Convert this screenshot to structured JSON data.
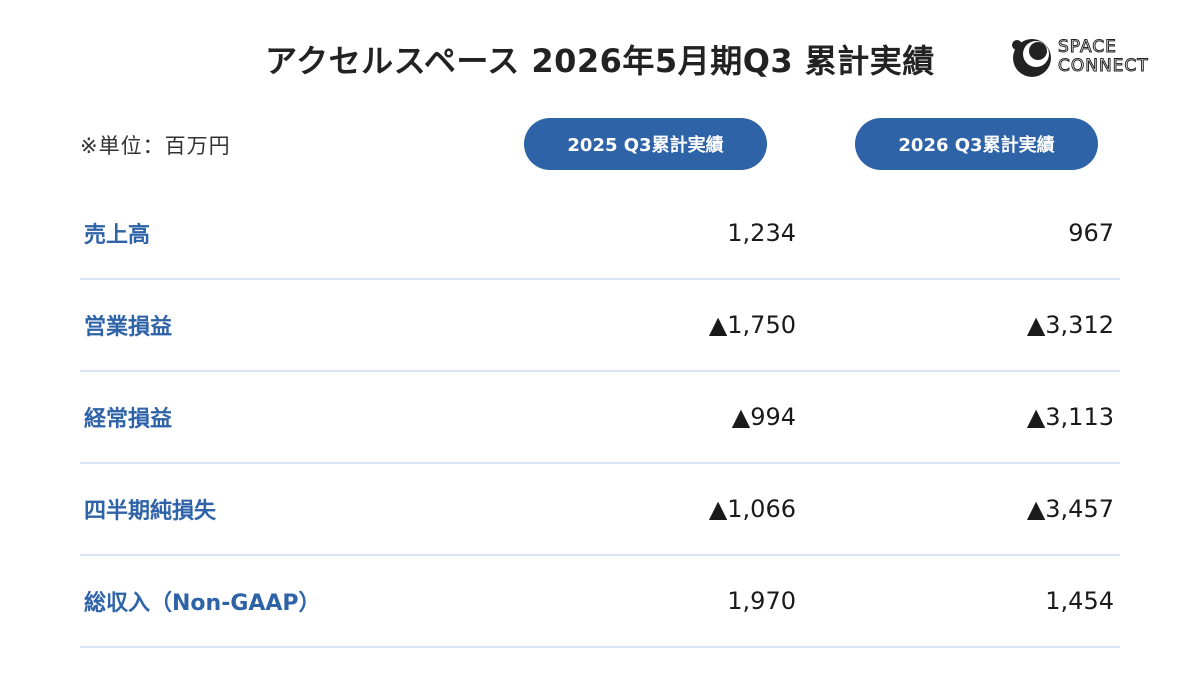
{
  "title": "アクセルスペース 2026年5月期Q3 累計実績",
  "logo": {
    "line1": "SPACE",
    "line2": "CONNECT"
  },
  "unit_note": "※単位：百万円",
  "columns": [
    "2025 Q3累計実績",
    "2026 Q3累計実績"
  ],
  "rows": [
    {
      "label": "売上高",
      "v2025": "1,234",
      "v2026": "967"
    },
    {
      "label": "営業損益",
      "v2025": "▲1,750",
      "v2026": "▲3,312"
    },
    {
      "label": "経常損益",
      "v2025": "▲994",
      "v2026": "▲3,113"
    },
    {
      "label": "四半期純損失",
      "v2025": "▲1,066",
      "v2026": "▲3,457"
    },
    {
      "label": "総収入（Non-GAAP）",
      "v2025": "1,970",
      "v2026": "1,454"
    }
  ],
  "colors": {
    "accent": "#2f63a8",
    "divider": "#d5e3f2",
    "text": "#1a1a1a"
  }
}
